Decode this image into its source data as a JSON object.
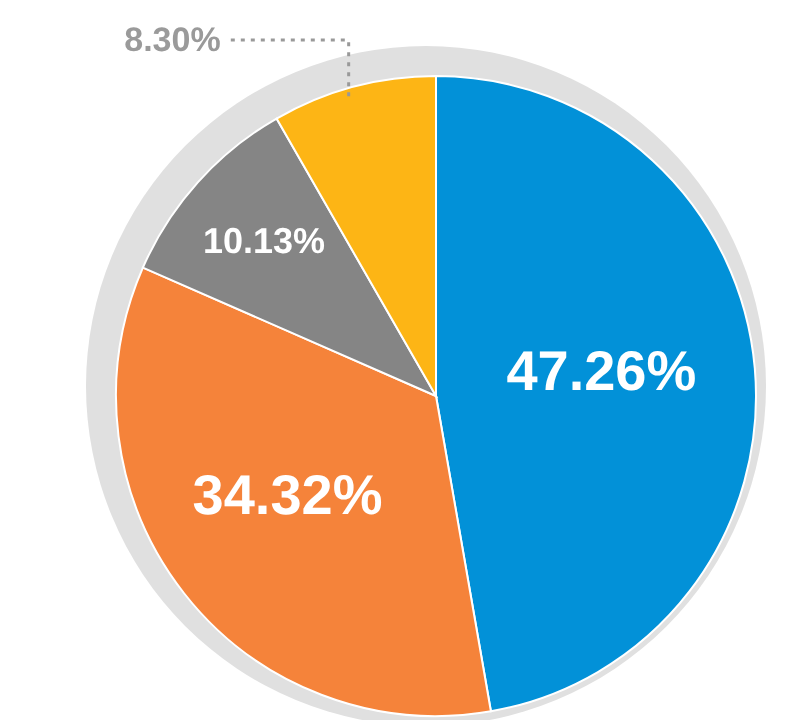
{
  "chart_data": {
    "type": "pie",
    "categories": [
      null,
      null,
      null,
      null
    ],
    "values": [
      47.26,
      34.32,
      10.13,
      8.3
    ],
    "colors": [
      "#0291d8",
      "#f5833a",
      "#858585",
      "#fdb515"
    ],
    "value_labels": [
      "47.26%",
      "34.32%",
      "10.13%",
      "8.30%"
    ],
    "legend": false
  }
}
